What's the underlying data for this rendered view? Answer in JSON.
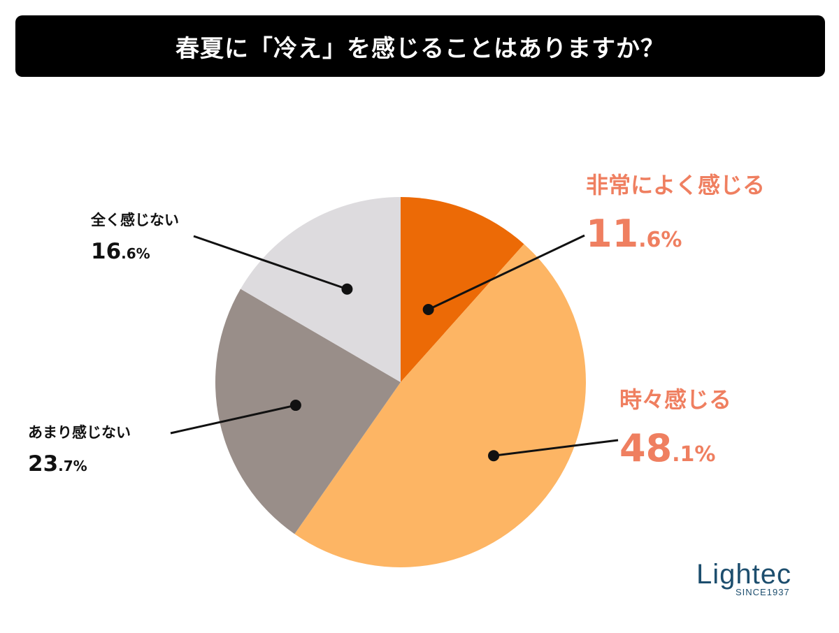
{
  "header": {
    "title": "春夏に「冷え」を感じることはありますか？"
  },
  "chart_data": {
    "type": "pie",
    "title": "春夏に「冷え」を感じることはありますか？",
    "start": "top",
    "direction": "clockwise",
    "slices": [
      {
        "label": "非常によく感じる",
        "value": 11.6,
        "value_int": "11",
        "value_dec": ".6%",
        "color": "#ec6a06",
        "label_color": "#ef7f60"
      },
      {
        "label": "時々感じる",
        "value": 48.1,
        "value_int": "48",
        "value_dec": ".1%",
        "color": "#fdb564",
        "label_color": "#ef7f60"
      },
      {
        "label": "あまり感じない",
        "value": 23.7,
        "value_int": "23",
        "value_dec": ".7%",
        "color": "#998e89",
        "label_color": "#111111"
      },
      {
        "label": "全く感じない",
        "value": 16.6,
        "value_int": "16",
        "value_dec": ".6%",
        "color": "#dddbde",
        "label_color": "#111111"
      }
    ]
  },
  "logo": {
    "name": "Lightec",
    "tagline": "SINCE1937",
    "color": "#1d4e6e"
  }
}
